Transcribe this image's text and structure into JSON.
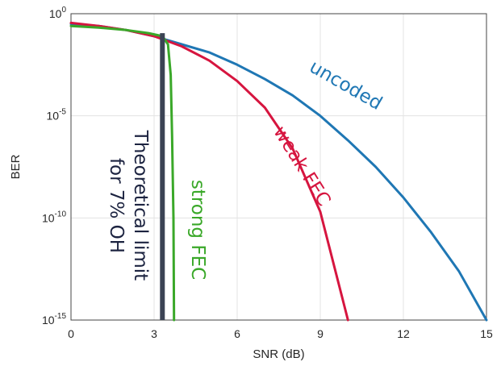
{
  "chart_data": {
    "type": "line",
    "xlabel": "SNR (dB)",
    "ylabel": "BER",
    "xlim": [
      0,
      15
    ],
    "ylim_exponent": [
      -15,
      0
    ],
    "yscale": "log10",
    "grid": true,
    "x_ticks": [
      "0",
      "3",
      "6",
      "9",
      "12",
      "15"
    ],
    "y_ticks": [
      {
        "base": "10",
        "exp": "0",
        "value_exponent": 0
      },
      {
        "base": "10",
        "exp": "-5",
        "value_exponent": -5
      },
      {
        "base": "10",
        "exp": "-10",
        "value_exponent": -10
      },
      {
        "base": "10",
        "exp": "-15",
        "value_exponent": -15
      }
    ],
    "series": [
      {
        "name": "uncoded",
        "color": "#1f77b4",
        "points_log10": [
          [
            0,
            -0.5
          ],
          [
            1,
            -0.6
          ],
          [
            2,
            -0.8
          ],
          [
            3,
            -1.1
          ],
          [
            4,
            -1.5
          ],
          [
            5,
            -1.9
          ],
          [
            6,
            -2.5
          ],
          [
            7,
            -3.2
          ],
          [
            8,
            -4.0
          ],
          [
            9,
            -5.0
          ],
          [
            10,
            -6.2
          ],
          [
            11,
            -7.5
          ],
          [
            12,
            -9.0
          ],
          [
            13,
            -10.7
          ],
          [
            14,
            -12.6
          ],
          [
            15,
            -15.0
          ]
        ]
      },
      {
        "name": "weak FEC",
        "color": "#d6153f",
        "points_log10": [
          [
            0,
            -0.45
          ],
          [
            1,
            -0.6
          ],
          [
            2,
            -0.8
          ],
          [
            3,
            -1.1
          ],
          [
            4,
            -1.6
          ],
          [
            5,
            -2.3
          ],
          [
            6,
            -3.3
          ],
          [
            7,
            -4.6
          ],
          [
            8,
            -6.6
          ],
          [
            9,
            -9.7
          ],
          [
            10,
            -15.0
          ]
        ]
      },
      {
        "name": "strong FEC",
        "color": "#3aa829",
        "points_log10": [
          [
            0,
            -0.6
          ],
          [
            1,
            -0.68
          ],
          [
            2,
            -0.8
          ],
          [
            2.8,
            -0.95
          ],
          [
            3.3,
            -1.1
          ],
          [
            3.5,
            -1.5
          ],
          [
            3.6,
            -3.0
          ],
          [
            3.65,
            -6.0
          ],
          [
            3.7,
            -10.0
          ],
          [
            3.72,
            -15.0
          ]
        ]
      }
    ],
    "limit_line": {
      "x": 3.3,
      "log10_from": -0.95,
      "log10_to": -15.0,
      "color": "#3b4354"
    },
    "annotations": [
      {
        "text": "uncoded",
        "color": "#1f77b4"
      },
      {
        "text": "weak FEC",
        "color": "#d6153f"
      },
      {
        "text": "strong FEC",
        "color": "#3aa829"
      },
      {
        "text_line1": "Theoretical limit",
        "text_line2": "for 7% OH",
        "color": "#1c2340"
      }
    ]
  }
}
